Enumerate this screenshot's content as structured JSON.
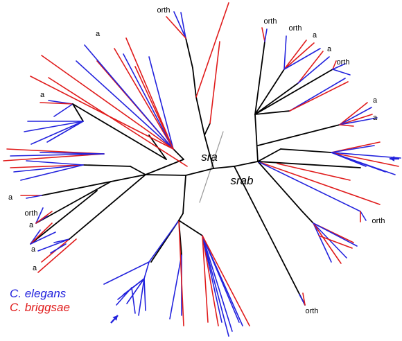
{
  "colors": {
    "elegans": "#2222dd",
    "briggsae": "#e01b1b",
    "backbone": "#000000",
    "divider": "#999999"
  },
  "clades": {
    "sra": "sra",
    "srab": "srab"
  },
  "markers": {
    "ancestral": "a",
    "ortholog": "orth"
  },
  "legend": {
    "elegans": "C. elegans",
    "briggsae": "C. briggsae"
  },
  "icons": {
    "arrow": "arrow-icon"
  }
}
